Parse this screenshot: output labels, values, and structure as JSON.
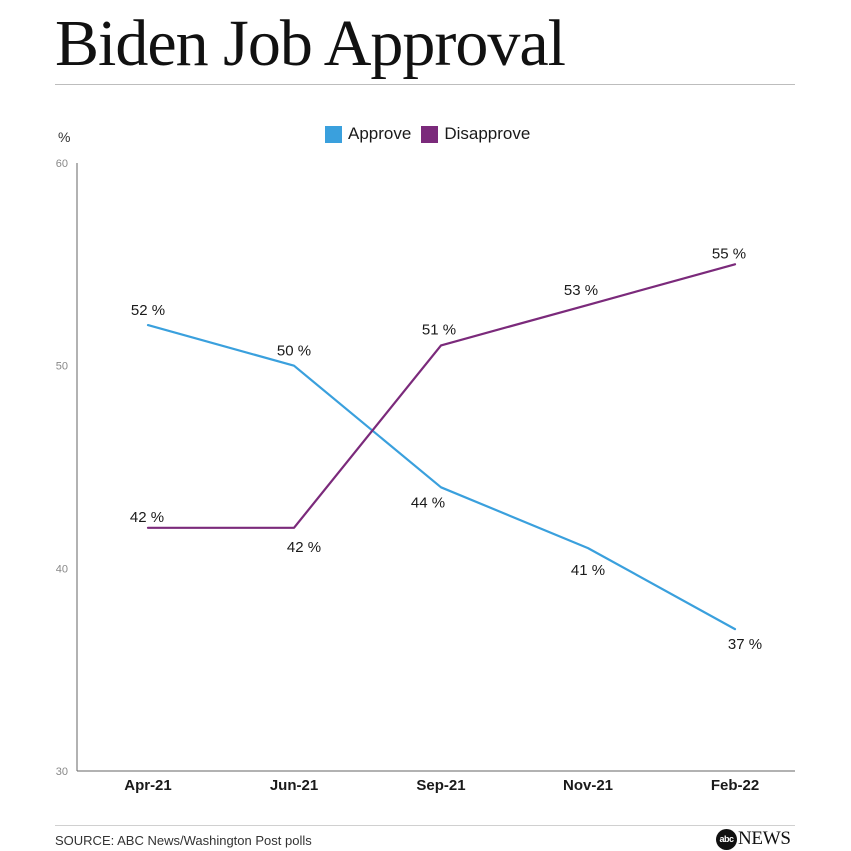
{
  "title": "Biden Job Approval",
  "source": "SOURCE: ABC News/Washington Post polls",
  "logo": {
    "mark": "abc",
    "word": "NEWS"
  },
  "colors": {
    "approve": "#3aa0dd",
    "disapprove": "#7b2a7b",
    "axis": "#666666",
    "text": "#1a1a1a"
  },
  "chart_data": {
    "type": "line",
    "title": "Biden Job Approval",
    "ylabel": "%",
    "xlabel": "",
    "categories": [
      "Apr-21",
      "Jun-21",
      "Sep-21",
      "Nov-21",
      "Feb-22"
    ],
    "ylim": [
      30,
      60
    ],
    "yticks": [
      30,
      40,
      50,
      60
    ],
    "grid": false,
    "legend_position": "top-center",
    "series": [
      {
        "name": "Approve",
        "color": "#3aa0dd",
        "values": [
          52,
          50,
          44,
          41,
          37
        ],
        "labels": [
          "52 %",
          "50 %",
          "44 %",
          "41 %",
          "37 %"
        ]
      },
      {
        "name": "Disapprove",
        "color": "#7b2a7b",
        "values": [
          42,
          42,
          51,
          53,
          55
        ],
        "labels": [
          "42 %",
          "42 %",
          "51 %",
          "53 %",
          "55 %"
        ]
      }
    ]
  }
}
